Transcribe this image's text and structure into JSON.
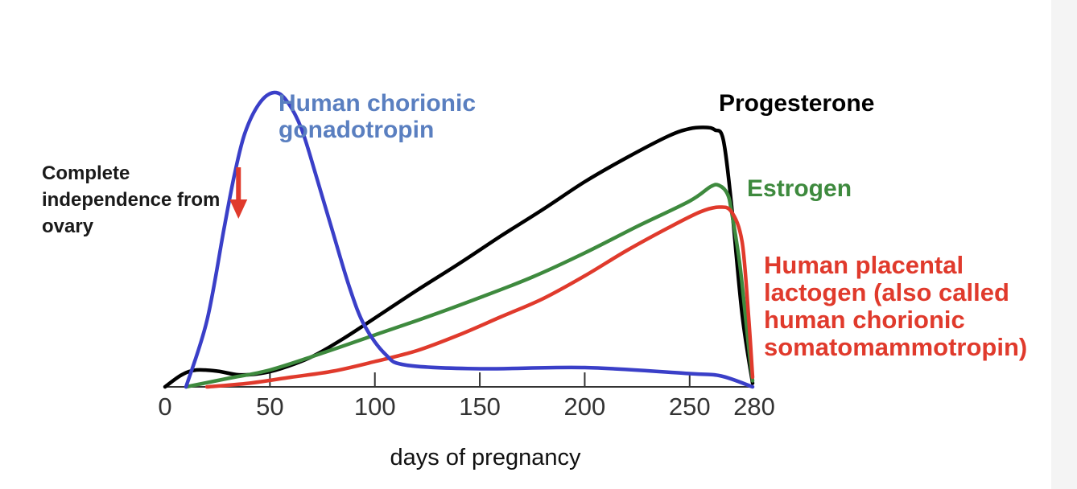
{
  "chart_data": {
    "type": "line",
    "xlabel": "days of pregnancy",
    "ylabel": "",
    "xlim": [
      0,
      280
    ],
    "x_ticks": [
      0,
      50,
      100,
      150,
      200,
      250,
      280
    ],
    "grid": false,
    "series": [
      {
        "name": "Progesterone",
        "color": "#000000",
        "x": [
          0,
          8,
          15,
          25,
          35,
          45,
          55,
          70,
          85,
          100,
          120,
          140,
          160,
          180,
          200,
          220,
          240,
          250,
          258,
          262,
          266,
          270,
          275,
          280
        ],
        "y": [
          0,
          10,
          14,
          13,
          10,
          11,
          15,
          25,
          40,
          57,
          80,
          102,
          125,
          147,
          170,
          190,
          208,
          214,
          215,
          213,
          205,
          150,
          60,
          3
        ]
      },
      {
        "name": "Human chorionic gonadotropin",
        "color": "#3a3fc8",
        "x": [
          10,
          20,
          28,
          33,
          38,
          45,
          52,
          58,
          65,
          72,
          80,
          88,
          95,
          105,
          115,
          150,
          200,
          250,
          265,
          280
        ],
        "y": [
          0,
          55,
          130,
          175,
          210,
          235,
          244,
          237,
          214,
          175,
          128,
          82,
          51,
          27,
          18,
          15,
          16,
          11,
          9,
          0
        ]
      },
      {
        "name": "Estrogen",
        "color": "#3e8a3e",
        "x": [
          10,
          30,
          50,
          75,
          100,
          125,
          150,
          175,
          200,
          225,
          250,
          260,
          264,
          268,
          270,
          274,
          278,
          280
        ],
        "y": [
          0,
          7,
          14,
          28,
          43,
          58,
          74,
          91,
          111,
          133,
          154,
          166,
          167,
          160,
          145,
          100,
          35,
          5
        ]
      },
      {
        "name": "Human placental lactogen (also called human chorionic somatomammotropin)",
        "color": "#e03a2c",
        "x": [
          20,
          40,
          60,
          80,
          100,
          120,
          140,
          160,
          180,
          200,
          220,
          240,
          255,
          264,
          270,
          275,
          278,
          280
        ],
        "y": [
          0,
          3,
          8,
          13,
          21,
          30,
          43,
          58,
          73,
          92,
          113,
          132,
          145,
          149,
          145,
          120,
          60,
          8
        ]
      }
    ],
    "annotations": [
      {
        "text": "Complete independence from ovary",
        "x": 35,
        "color": "#1a1a1a",
        "marker": "down-arrow",
        "marker_color": "#e03a2c"
      }
    ]
  },
  "labels": {
    "hcg": "Human chorionic gonadotropin",
    "progesterone": "Progesterone",
    "estrogen": "Estrogen",
    "hpl": "Human placental lactogen (also called human chorionic somatomammotropin)",
    "independence": "Complete independence from ovary",
    "xlabel": "days of pregnancy"
  }
}
